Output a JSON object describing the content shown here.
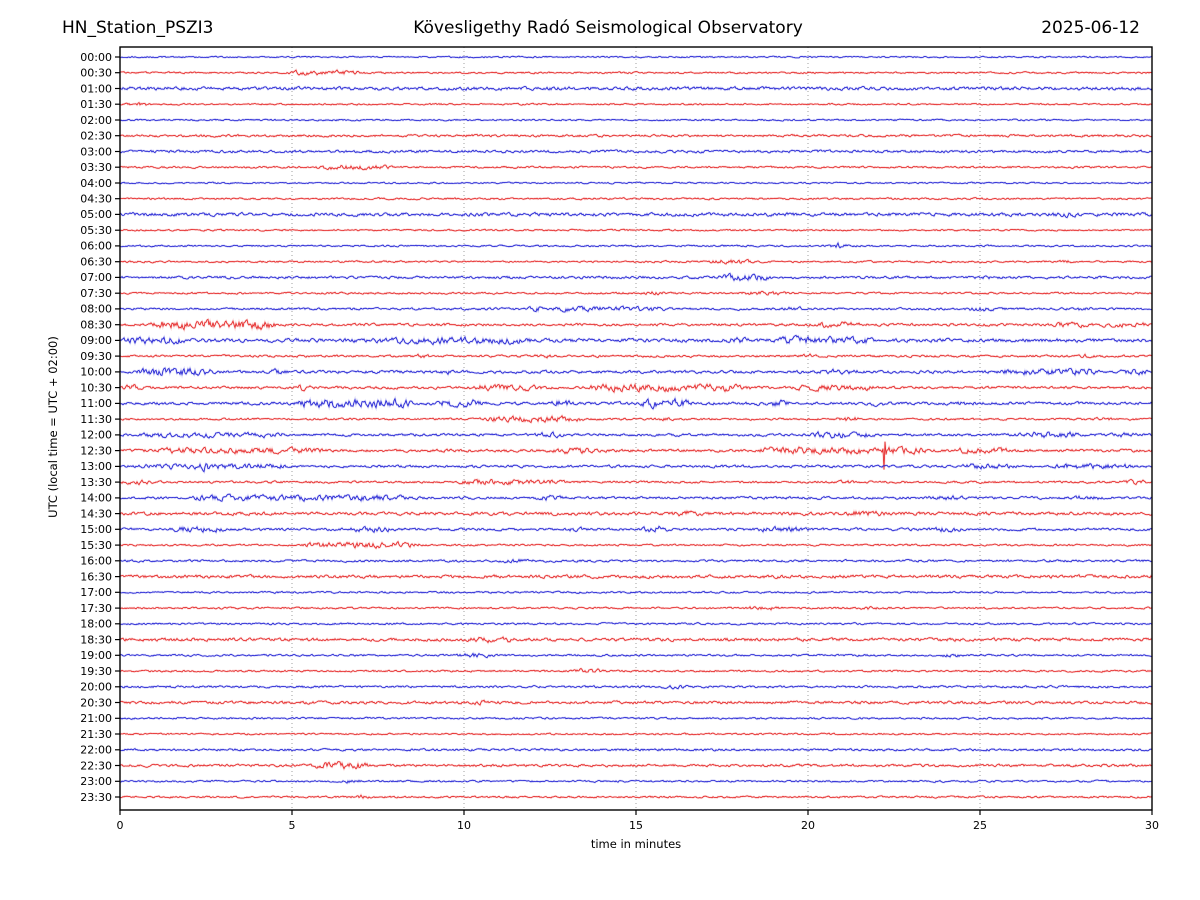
{
  "header": {
    "station": "HN_Station_PSZI3",
    "observatory": "Kövesligethy Radó Seismological Observatory",
    "date": "2025-06-12"
  },
  "axes": {
    "xlabel": "time in minutes",
    "ylabel": "UTC (local time = UTC + 02:00)",
    "xticks": [
      0,
      5,
      10,
      15,
      20,
      25,
      30
    ],
    "xmin": 0,
    "xmax": 30
  },
  "colors": {
    "trace_blue": "#1a1ad2",
    "trace_red": "#e42020",
    "grid": "#888888",
    "spine": "#000000",
    "background": "#ffffff"
  },
  "chart_data": {
    "type": "helicorder",
    "minutes_per_row": 30,
    "row_interval": "00:30",
    "note": "24h seismogram, one 30-min line per row; colors alternate blue (:00) and red (:30); b = baseline noise amplitude px, ev = [startMin,endMin,extraAmpPx] activity bursts",
    "rows": [
      {
        "label": "00:00",
        "color": "blue",
        "b": 0.45,
        "ev": []
      },
      {
        "label": "00:30",
        "color": "red",
        "b": 0.5,
        "ev": [
          [
            4.8,
            7.2,
            0.9
          ]
        ]
      },
      {
        "label": "01:00",
        "color": "blue",
        "b": 1.0,
        "ev": []
      },
      {
        "label": "01:30",
        "color": "red",
        "b": 0.5,
        "ev": [
          [
            0,
            1.2,
            0.6
          ]
        ]
      },
      {
        "label": "02:00",
        "color": "blue",
        "b": 0.5,
        "ev": []
      },
      {
        "label": "02:30",
        "color": "red",
        "b": 0.7,
        "ev": []
      },
      {
        "label": "03:00",
        "color": "blue",
        "b": 0.8,
        "ev": []
      },
      {
        "label": "03:30",
        "color": "red",
        "b": 0.55,
        "ev": [
          [
            5.5,
            8,
            0.9
          ]
        ]
      },
      {
        "label": "04:00",
        "color": "blue",
        "b": 0.45,
        "ev": []
      },
      {
        "label": "04:30",
        "color": "red",
        "b": 0.55,
        "ev": []
      },
      {
        "label": "05:00",
        "color": "blue",
        "b": 1.0,
        "ev": [
          [
            27,
            28,
            0.8
          ]
        ]
      },
      {
        "label": "05:30",
        "color": "red",
        "b": 0.5,
        "ev": []
      },
      {
        "label": "06:00",
        "color": "blue",
        "b": 0.5,
        "ev": [
          [
            20.5,
            21.2,
            1.5
          ]
        ]
      },
      {
        "label": "06:30",
        "color": "red",
        "b": 0.55,
        "ev": [
          [
            17,
            18.5,
            0.8
          ],
          [
            27.2,
            27.8,
            0.7
          ]
        ]
      },
      {
        "label": "07:00",
        "color": "blue",
        "b": 0.75,
        "ev": [
          [
            17.3,
            19,
            1.3
          ],
          [
            24.8,
            25.4,
            0.9
          ]
        ]
      },
      {
        "label": "07:30",
        "color": "red",
        "b": 0.55,
        "ev": [
          [
            15,
            16,
            0.7
          ],
          [
            18,
            19.5,
            0.7
          ]
        ]
      },
      {
        "label": "08:00",
        "color": "blue",
        "b": 0.65,
        "ev": [
          [
            11.8,
            12.4,
            1.7
          ],
          [
            12.4,
            16,
            0.8
          ],
          [
            19.2,
            19.9,
            1.1
          ],
          [
            24.5,
            25.5,
            0.8
          ],
          [
            27.7,
            28.4,
            0.9
          ]
        ]
      },
      {
        "label": "08:30",
        "color": "red",
        "b": 0.75,
        "ev": [
          [
            0.8,
            4.6,
            2.0
          ],
          [
            20,
            21.6,
            1.0
          ],
          [
            27,
            30,
            0.7
          ]
        ]
      },
      {
        "label": "09:00",
        "color": "blue",
        "b": 1.1,
        "ev": [
          [
            0,
            2,
            1.1
          ],
          [
            7.3,
            12,
            1.0
          ],
          [
            17.6,
            18.3,
            1.8
          ],
          [
            19,
            22,
            1.1
          ]
        ]
      },
      {
        "label": "09:30",
        "color": "red",
        "b": 0.65,
        "ev": [
          [
            8.4,
            9.1,
            1.0
          ],
          [
            12,
            12.7,
            1.0
          ],
          [
            19.7,
            20.4,
            0.8
          ],
          [
            27.7,
            28.4,
            0.7
          ]
        ]
      },
      {
        "label": "10:00",
        "color": "blue",
        "b": 0.85,
        "ev": [
          [
            0.3,
            2.8,
            1.5
          ],
          [
            4.2,
            4.9,
            1.0
          ],
          [
            9.2,
            9.9,
            0.8
          ],
          [
            20.2,
            21.6,
            0.9
          ],
          [
            25.5,
            28.5,
            1.1
          ],
          [
            29,
            30,
            0.9
          ]
        ]
      },
      {
        "label": "10:30",
        "color": "red",
        "b": 0.75,
        "ev": [
          [
            0,
            0.7,
            1.4
          ],
          [
            5,
            5.6,
            1.7
          ],
          [
            10,
            12.5,
            1.1
          ],
          [
            13.5,
            18.4,
            1.4
          ],
          [
            19.5,
            22,
            1.0
          ]
        ]
      },
      {
        "label": "11:00",
        "color": "blue",
        "b": 0.85,
        "ev": [
          [
            5,
            8.6,
            1.8
          ],
          [
            9,
            10.6,
            1.4
          ],
          [
            12.4,
            13.3,
            1.5
          ],
          [
            15,
            16.7,
            2.0
          ],
          [
            18.4,
            19.6,
            1.1
          ],
          [
            21.7,
            22.4,
            0.9
          ],
          [
            24.2,
            24.9,
            0.8
          ]
        ]
      },
      {
        "label": "11:30",
        "color": "red",
        "b": 0.6,
        "ev": [
          [
            10.4,
            13.6,
            1.2
          ],
          [
            15.5,
            16.2,
            0.8
          ],
          [
            20.7,
            21.7,
            0.9
          ],
          [
            28.2,
            28.9,
            0.7
          ]
        ]
      },
      {
        "label": "12:00",
        "color": "blue",
        "b": 0.75,
        "ev": [
          [
            0.5,
            5,
            0.8
          ],
          [
            12,
            13,
            0.9
          ],
          [
            20,
            22,
            1.3
          ],
          [
            26,
            28,
            1.1
          ],
          [
            28.7,
            29.6,
            0.9
          ]
        ]
      },
      {
        "label": "12:30",
        "color": "red",
        "b": 0.85,
        "ev": [
          [
            1,
            6,
            0.9
          ],
          [
            12.5,
            14,
            0.9
          ],
          [
            18.5,
            23.5,
            1.3
          ],
          [
            24,
            26,
            0.8
          ]
        ],
        "spike": {
          "t": 22.2,
          "up": 9,
          "down": 19
        }
      },
      {
        "label": "13:00",
        "color": "blue",
        "b": 0.75,
        "ev": [
          [
            0.5,
            5,
            0.8
          ],
          [
            2.2,
            2.9,
            1.6
          ],
          [
            24.4,
            26,
            0.9
          ],
          [
            27,
            29.5,
            1.0
          ]
        ]
      },
      {
        "label": "13:30",
        "color": "red",
        "b": 0.65,
        "ev": [
          [
            0,
            1,
            0.9
          ],
          [
            9.8,
            13,
            0.9
          ],
          [
            20.7,
            21.4,
            0.8
          ],
          [
            29,
            30,
            0.8
          ]
        ]
      },
      {
        "label": "14:00",
        "color": "blue",
        "b": 0.75,
        "ev": [
          [
            2,
            8.5,
            1.0
          ],
          [
            12,
            13,
            0.8
          ],
          [
            23.4,
            24.6,
            0.7
          ],
          [
            27.4,
            28.6,
            0.7
          ]
        ]
      },
      {
        "label": "14:30",
        "color": "red",
        "b": 0.95,
        "ev": [
          [
            16,
            17,
            0.8
          ],
          [
            21,
            22.4,
            0.9
          ]
        ]
      },
      {
        "label": "15:00",
        "color": "blue",
        "b": 0.75,
        "ev": [
          [
            1.4,
            3.1,
            1.1
          ],
          [
            6.4,
            8.1,
            0.9
          ],
          [
            12.9,
            13.6,
            0.8
          ],
          [
            15.1,
            16,
            1.5
          ],
          [
            18.4,
            20.1,
            0.8
          ],
          [
            23.4,
            24.6,
            0.7
          ]
        ]
      },
      {
        "label": "15:30",
        "color": "red",
        "b": 0.55,
        "ev": [
          [
            5.2,
            8.8,
            1.2
          ]
        ]
      },
      {
        "label": "16:00",
        "color": "blue",
        "b": 0.65,
        "ev": [
          [
            10.9,
            12.1,
            0.8
          ]
        ]
      },
      {
        "label": "16:30",
        "color": "red",
        "b": 0.95,
        "ev": []
      },
      {
        "label": "17:00",
        "color": "blue",
        "b": 0.55,
        "ev": []
      },
      {
        "label": "17:30",
        "color": "red",
        "b": 0.55,
        "ev": [
          [
            18,
            19.4,
            0.7
          ],
          [
            21.4,
            22.1,
            0.6
          ]
        ]
      },
      {
        "label": "18:00",
        "color": "blue",
        "b": 0.55,
        "ev": []
      },
      {
        "label": "18:30",
        "color": "red",
        "b": 0.95,
        "ev": [
          [
            10,
            11.6,
            0.8
          ]
        ]
      },
      {
        "label": "19:00",
        "color": "blue",
        "b": 0.55,
        "ev": [
          [
            9.7,
            10.9,
            0.9
          ],
          [
            23.7,
            24.6,
            0.7
          ]
        ]
      },
      {
        "label": "19:30",
        "color": "red",
        "b": 0.55,
        "ev": [
          [
            13.1,
            14.1,
            1.2
          ]
        ]
      },
      {
        "label": "20:00",
        "color": "blue",
        "b": 0.65,
        "ev": [
          [
            15.7,
            16.6,
            0.8
          ]
        ]
      },
      {
        "label": "20:30",
        "color": "red",
        "b": 0.85,
        "ev": [
          [
            10.2,
            11,
            0.8
          ]
        ]
      },
      {
        "label": "21:00",
        "color": "blue",
        "b": 0.55,
        "ev": []
      },
      {
        "label": "21:30",
        "color": "red",
        "b": 0.5,
        "ev": []
      },
      {
        "label": "22:00",
        "color": "blue",
        "b": 0.65,
        "ev": []
      },
      {
        "label": "22:30",
        "color": "red",
        "b": 0.75,
        "ev": [
          [
            5.5,
            7.3,
            1.5
          ]
        ]
      },
      {
        "label": "23:00",
        "color": "blue",
        "b": 0.55,
        "ev": [
          [
            6.4,
            7.1,
            0.7
          ]
        ]
      },
      {
        "label": "23:30",
        "color": "red",
        "b": 0.55,
        "ev": [
          [
            6.7,
            7.4,
            0.9
          ]
        ]
      }
    ]
  }
}
